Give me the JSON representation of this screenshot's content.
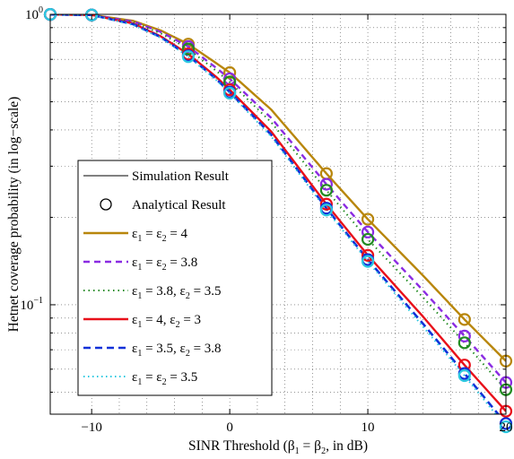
{
  "chart_data": {
    "type": "line",
    "xlabel": "SINR Threshold (β",
    "xlabel_sub1": "1",
    "xlabel_mid": " = β",
    "xlabel_sub2": "2",
    "xlabel_end": ", in dB)",
    "ylabel": "Hetnet coverage probability (in log−scale)",
    "x_scale": "linear",
    "y_scale": "log",
    "xlim": [
      -13,
      20
    ],
    "ylim": [
      0.042,
      1.0
    ],
    "grid": true,
    "legend_placement": "lower-left",
    "x_ticks": [
      {
        "value": -10,
        "label": "−10"
      },
      {
        "value": 0,
        "label": "0"
      },
      {
        "value": 10,
        "label": "10"
      },
      {
        "value": 20,
        "label": "20"
      }
    ],
    "y_ticks": [
      {
        "value": 0.1,
        "base": "10",
        "exp": "−1"
      },
      {
        "value": 1.0,
        "base": "10",
        "exp": "0"
      }
    ],
    "legend": {
      "simulation_label": "Simulation Result",
      "analytical_label": "Analytical Result"
    },
    "marker_x": [
      -13,
      -10,
      -3,
      0,
      7,
      10,
      17,
      20
    ],
    "series": [
      {
        "label": "ε_1 = ε_2 = 4",
        "color": "#b8860b",
        "dash": "solid",
        "width": 2.4,
        "x": [
          -13,
          -10,
          -7,
          -5,
          -3,
          -1,
          0,
          3,
          7,
          10,
          14,
          17,
          20
        ],
        "y": [
          0.999,
          0.995,
          0.95,
          0.88,
          0.79,
          0.68,
          0.63,
          0.47,
          0.283,
          0.197,
          0.126,
          0.089,
          0.064
        ]
      },
      {
        "label": "ε_1 = ε_2 = 3.8",
        "color": "#8a2be2",
        "dash": "7,5",
        "width": 2.4,
        "x": [
          -13,
          -10,
          -7,
          -5,
          -3,
          -1,
          0,
          3,
          7,
          10,
          14,
          17,
          20
        ],
        "y": [
          0.999,
          0.995,
          0.945,
          0.87,
          0.775,
          0.655,
          0.6,
          0.44,
          0.26,
          0.178,
          0.112,
          0.078,
          0.054
        ]
      },
      {
        "label": "ε_1 = 3.8, ε_2 = 3.5",
        "color": "#228b22",
        "dash": "1.5,4",
        "width": 2,
        "x": [
          -13,
          -10,
          -7,
          -5,
          -3,
          -1,
          0,
          3,
          7,
          10,
          14,
          17,
          20
        ],
        "y": [
          0.999,
          0.995,
          0.94,
          0.86,
          0.76,
          0.64,
          0.585,
          0.425,
          0.248,
          0.168,
          0.106,
          0.074,
          0.051
        ]
      },
      {
        "label": "ε_1 = 4, ε_2 = 3",
        "color": "#e8101a",
        "dash": "solid",
        "width": 2.4,
        "x": [
          -13,
          -10,
          -7,
          -5,
          -3,
          -1,
          0,
          3,
          7,
          10,
          14,
          17,
          20
        ],
        "y": [
          0.999,
          0.995,
          0.93,
          0.84,
          0.73,
          0.61,
          0.55,
          0.395,
          0.222,
          0.148,
          0.091,
          0.062,
          0.043
        ]
      },
      {
        "label": "ε_1 = 3.5, ε_2 = 3.8",
        "color": "#1030d8",
        "dash": "8,5",
        "width": 2.6,
        "x": [
          -13,
          -10,
          -7,
          -5,
          -3,
          -1,
          0,
          3,
          7,
          10,
          14,
          17,
          20
        ],
        "y": [
          0.999,
          0.995,
          0.925,
          0.835,
          0.72,
          0.6,
          0.54,
          0.385,
          0.215,
          0.143,
          0.086,
          0.058,
          0.039
        ]
      },
      {
        "label": "ε_1 = ε_2 = 3.5",
        "color": "#2cc8e0",
        "dash": "1.5,3.5",
        "width": 2,
        "x": [
          -13,
          -10,
          -7,
          -5,
          -3,
          -1,
          0,
          3,
          7,
          10,
          14,
          17,
          20
        ],
        "y": [
          0.999,
          0.995,
          0.92,
          0.83,
          0.715,
          0.595,
          0.535,
          0.38,
          0.212,
          0.141,
          0.084,
          0.057,
          0.038
        ]
      }
    ],
    "legend_entries": [
      {
        "base": "ε",
        "parts": [
          [
            "sub",
            "1"
          ],
          [
            "t",
            " = ε"
          ],
          [
            "sub",
            "2"
          ],
          [
            "t",
            " = 4"
          ]
        ]
      },
      {
        "base": "ε",
        "parts": [
          [
            "sub",
            "1"
          ],
          [
            "t",
            " = ε"
          ],
          [
            "sub",
            "2"
          ],
          [
            "t",
            " = 3.8"
          ]
        ]
      },
      {
        "base": "ε",
        "parts": [
          [
            "sub",
            "1"
          ],
          [
            "t",
            " = 3.8, ε"
          ],
          [
            "sub",
            "2"
          ],
          [
            "t",
            " = 3.5"
          ]
        ]
      },
      {
        "base": "ε",
        "parts": [
          [
            "sub",
            "1"
          ],
          [
            "t",
            " = 4, ε"
          ],
          [
            "sub",
            "2"
          ],
          [
            "t",
            " = 3"
          ]
        ]
      },
      {
        "base": "ε",
        "parts": [
          [
            "sub",
            "1"
          ],
          [
            "t",
            " = 3.5, ε"
          ],
          [
            "sub",
            "2"
          ],
          [
            "t",
            " = 3.8"
          ]
        ]
      },
      {
        "base": "ε",
        "parts": [
          [
            "sub",
            "1"
          ],
          [
            "t",
            " = ε"
          ],
          [
            "sub",
            "2"
          ],
          [
            "t",
            " = 3.5"
          ]
        ]
      }
    ]
  }
}
